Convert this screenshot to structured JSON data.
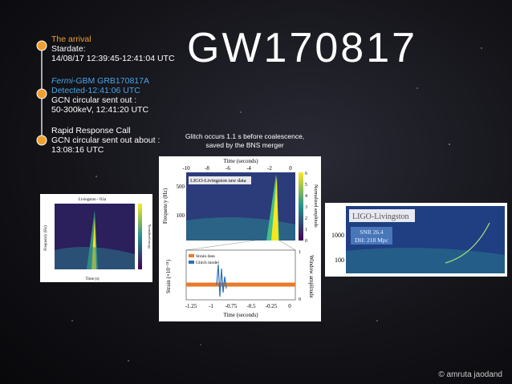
{
  "title": "GW170817",
  "timeline": [
    {
      "heading": "The arrival",
      "lines": [
        "Stardate:",
        "14/08/17 12:39:45-12:41:04 UTC"
      ]
    },
    {
      "heading_italic": "Fermi",
      "heading": "-GBM GRB170817A",
      "detected": "Detected-12:41:06 UTC",
      "lines": [
        "GCN circular sent out :",
        "50-300keV, 12:41:20 UTC"
      ]
    },
    {
      "lines": [
        "Rapid Response Call",
        "GCN circular sent out about  :",
        "13:08:16 UTC"
      ]
    }
  ],
  "caption": [
    "Glitch occurs 1.1 s before coalescence,",
    "saved by the BNS merger"
  ],
  "left_plot": {
    "title": "Livingston - O2a",
    "xlabel": "Time (s)",
    "ylabel": "Frequency (Hz)",
    "colorbar_label": "Normalized energy"
  },
  "center_plot": {
    "top": {
      "xlabel": "Time (seconds)",
      "xticks": [
        "-10",
        "-8",
        "-6",
        "-4",
        "-2",
        "0"
      ],
      "legend": "LIGO-Livingston raw data",
      "ylabel": "Frequency (Hz)",
      "yticks": [
        "500",
        "100"
      ],
      "colorbar_label": "Normalized amplitude",
      "colorbar_ticks": [
        "6",
        "5",
        "4",
        "3",
        "2",
        "1",
        "0"
      ]
    },
    "bottom": {
      "legend": [
        "Strain data",
        "Glitch model"
      ],
      "ylabel": "Strain (×10⁻²¹)",
      "y2label": "Window amplitude",
      "y2ticks": [
        "1",
        "0"
      ],
      "xticks": [
        "-1.25",
        "-1",
        "-0.75",
        "-0.5",
        "-0.25",
        "0"
      ],
      "xlabel": "Time (seconds)"
    }
  },
  "right_plot": {
    "title": "LIGO-Livingston",
    "yticks": [
      "1000",
      "100"
    ],
    "snr": "SNR 26.4",
    "distance": "DH: 218 Mpc"
  },
  "credit": "© amruta jaodand"
}
